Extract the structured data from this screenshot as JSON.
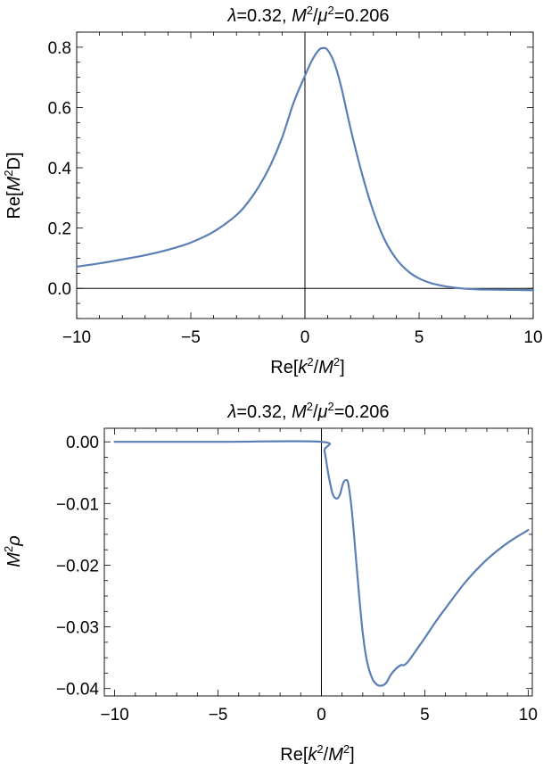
{
  "chart_data": [
    {
      "type": "line",
      "title": "λ=0.32, M²/μ²=0.206",
      "title_parts": {
        "lam": "λ",
        "lam_val": "=0.32, ",
        "M": "M",
        "sq1": "2",
        "slash": "/",
        "mu": "μ",
        "sq2": "2",
        "val": "=0.206"
      },
      "xlabel": "Re[k²/M²]",
      "xlabel_parts": {
        "pre": "Re[",
        "k": "k",
        "sq1": "2",
        "slash": "/",
        "M": "M",
        "sq2": "2",
        "post": "]"
      },
      "ylabel": "Re[M²D]",
      "ylabel_parts": {
        "pre": "Re[",
        "M": "M",
        "sq": "2",
        "post": "D]"
      },
      "xlim": [
        -10,
        10
      ],
      "ylim": [
        -0.1,
        0.85
      ],
      "x_ticks": [
        -10,
        -5,
        0,
        5,
        10
      ],
      "x_tick_labels": [
        "−10",
        "−5",
        "0",
        "5",
        "10"
      ],
      "y_ticks": [
        0.0,
        0.2,
        0.4,
        0.6,
        0.8
      ],
      "y_tick_labels": [
        "0.0",
        "0.2",
        "0.4",
        "0.6",
        "0.8"
      ],
      "grid": false,
      "color": "#5b7fb4",
      "series": [
        {
          "x": [
            -10,
            -9,
            -8,
            -7,
            -6,
            -5,
            -4,
            -3,
            -2.5,
            -2,
            -1.5,
            -1,
            -0.5,
            0,
            0.3,
            0.6,
            0.8,
            1.0,
            1.3,
            1.6,
            2.0,
            2.5,
            3.0,
            3.5,
            4.0,
            4.5,
            5.0,
            5.5,
            6.0,
            6.5,
            7.0,
            7.5,
            8.0,
            9.0,
            10.0
          ],
          "y": [
            0.072,
            0.083,
            0.096,
            0.11,
            0.128,
            0.152,
            0.188,
            0.243,
            0.285,
            0.34,
            0.41,
            0.5,
            0.615,
            0.705,
            0.755,
            0.79,
            0.797,
            0.79,
            0.745,
            0.665,
            0.53,
            0.38,
            0.255,
            0.16,
            0.098,
            0.058,
            0.033,
            0.018,
            0.009,
            0.003,
            -0.001,
            -0.003,
            -0.004,
            -0.005,
            -0.006
          ]
        }
      ]
    },
    {
      "type": "line",
      "title": "λ=0.32, M²/μ²=0.206",
      "title_parts": {
        "lam": "λ",
        "lam_val": "=0.32, ",
        "M": "M",
        "sq1": "2",
        "slash": "/",
        "mu": "μ",
        "sq2": "2",
        "val": "=0.206"
      },
      "xlabel": "Re[k²/M²]",
      "xlabel_parts": {
        "pre": "Re[",
        "k": "k",
        "sq1": "2",
        "slash": "/",
        "M": "M",
        "sq2": "2",
        "post": "]"
      },
      "ylabel": "M²ρ",
      "ylabel_parts": {
        "M": "M",
        "sq": "2",
        "rho": "ρ"
      },
      "xlim": [
        -10.5,
        10.2
      ],
      "ylim": [
        -0.0412,
        0.0022
      ],
      "x_ticks": [
        -10,
        -5,
        0,
        5,
        10
      ],
      "x_tick_labels": [
        "−10",
        "−5",
        "0",
        "5",
        "10"
      ],
      "y_ticks": [
        0.0,
        -0.01,
        -0.02,
        -0.03,
        -0.04
      ],
      "y_tick_labels": [
        "0.00",
        "−0.01",
        "−0.02",
        "−0.03",
        "−0.04"
      ],
      "grid": false,
      "color": "#5b7fb4",
      "series": [
        {
          "x": [
            -10,
            -5,
            0,
            0.15,
            0.35,
            0.55,
            0.75,
            0.9,
            1.05,
            1.2,
            1.3,
            1.45,
            1.6,
            1.8,
            2.0,
            2.2,
            2.45,
            2.7,
            2.95,
            3.15,
            3.35,
            3.6,
            3.85,
            4.0,
            4.2,
            4.5,
            5.0,
            5.5,
            6.0,
            7.0,
            8.0,
            9.0,
            10.0
          ],
          "y": [
            0.0,
            0.0,
            0.0,
            -0.0015,
            -0.0055,
            -0.0085,
            -0.0092,
            -0.0085,
            -0.0067,
            -0.0062,
            -0.0068,
            -0.0105,
            -0.016,
            -0.024,
            -0.031,
            -0.0355,
            -0.0383,
            -0.0394,
            -0.0395,
            -0.039,
            -0.0378,
            -0.0368,
            -0.0362,
            -0.0362,
            -0.0356,
            -0.0342,
            -0.0318,
            -0.0293,
            -0.027,
            -0.0226,
            -0.0191,
            -0.0164,
            -0.0143
          ]
        }
      ]
    }
  ]
}
